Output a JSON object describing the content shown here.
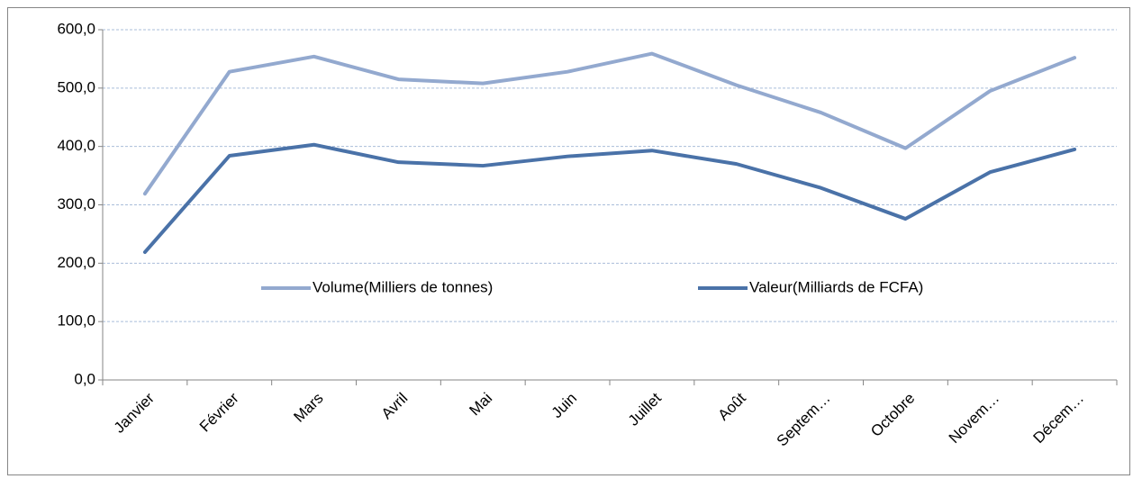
{
  "chart_data": {
    "type": "line",
    "categories": [
      "Janvier",
      "Février",
      "Mars",
      "Avril",
      "Mai",
      "Juin",
      "Juillet",
      "Août",
      "Septem…",
      "Octobre",
      "Novem…",
      "Décem…"
    ],
    "series": [
      {
        "name": "Volume(Milliers de tonnes)",
        "color": "#93a9cf",
        "values": [
          319,
          528,
          554,
          515,
          508,
          528,
          559,
          505,
          458,
          397,
          495,
          552
        ]
      },
      {
        "name": "Valeur(Milliards de FCFA)",
        "color": "#4a72a8",
        "values": [
          219,
          384,
          403,
          373,
          367,
          383,
          393,
          370,
          329,
          276,
          356,
          395
        ]
      }
    ],
    "ylim": [
      0,
      600
    ],
    "yticks": [
      {
        "value": 0,
        "label": "0,0"
      },
      {
        "value": 100,
        "label": "100,0"
      },
      {
        "value": 200,
        "label": "200,0"
      },
      {
        "value": 300,
        "label": "300,0"
      },
      {
        "value": 400,
        "label": "400,0"
      },
      {
        "value": 500,
        "label": "500,0"
      },
      {
        "value": 600,
        "label": "600,0"
      }
    ],
    "grid": true
  }
}
